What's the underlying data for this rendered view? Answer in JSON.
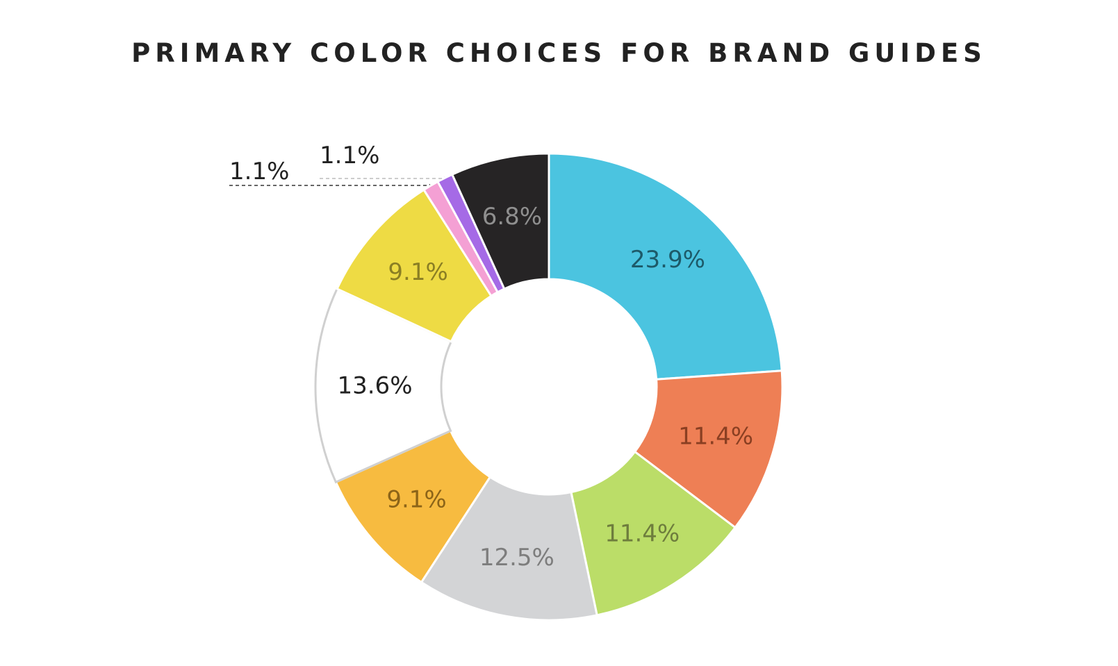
{
  "chart_data": {
    "type": "pie",
    "style": "donut",
    "title": "PRIMARY COLOR CHOICES FOR BRAND GUIDES",
    "categories": [
      "Blue",
      "Orange",
      "Green",
      "Gray",
      "Orange-yellow",
      "White",
      "Yellow",
      "Pink",
      "Purple",
      "Black"
    ],
    "values": [
      23.9,
      11.4,
      11.4,
      12.5,
      9.1,
      13.6,
      9.1,
      1.1,
      1.1,
      6.8
    ],
    "labels": [
      "23.9%",
      "11.4%",
      "11.4%",
      "12.5%",
      "9.1%",
      "13.6%",
      "9.1%",
      "1.1%",
      "1.1%",
      "6.8%"
    ],
    "colors": [
      "#4bc4e0",
      "#ee7f55",
      "#bbdd68",
      "#d3d4d6",
      "#f7bb40",
      "#ffffff",
      "#eedb44",
      "#f4a0d4",
      "#a56ae6",
      "#262425"
    ],
    "label_colors": [
      "#1d5a69",
      "#8a3f22",
      "#6e7d3d",
      "#7d7d7d",
      "#8c6418",
      "#222222",
      "#8a7e24",
      "#222222",
      "#222222",
      "#8f8f8f"
    ],
    "label_placement": [
      "inside",
      "inside",
      "inside",
      "inside",
      "inside",
      "inside",
      "inside",
      "outside",
      "outside",
      "inside"
    ],
    "start_angle_deg": 0,
    "direction": "clockwise"
  }
}
